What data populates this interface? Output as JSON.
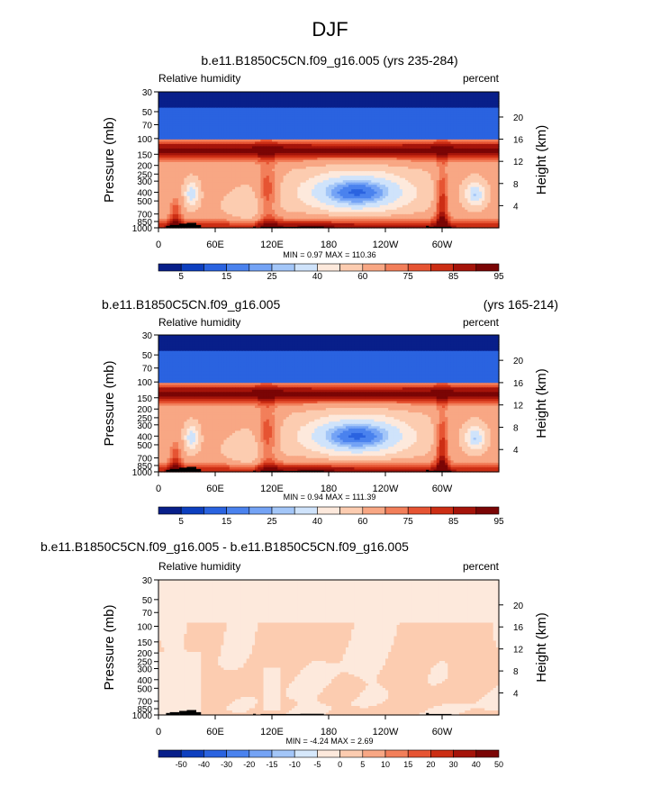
{
  "main_title": "DJF",
  "colors": {
    "rh_levels": [
      "#081f8a",
      "#0d3fbf",
      "#2a63e0",
      "#4a82ee",
      "#74a3f5",
      "#a3c6f8",
      "#cfe3fb",
      "#fde9dc",
      "#fcccb0",
      "#f8a784",
      "#f27f5a",
      "#e65433",
      "#cc2e14",
      "#a5140a",
      "#7a0505"
    ],
    "diff_levels": [
      "#081f8a",
      "#0d3fbf",
      "#2a63e0",
      "#4a82ee",
      "#74a3f5",
      "#a3c6f8",
      "#d6e8fb",
      "#fde9dc",
      "#fcccb0",
      "#f8a784",
      "#f27f5a",
      "#e65433",
      "#cc2e14",
      "#a5140a",
      "#7a0505"
    ],
    "terrain": "#000000"
  },
  "chart_data": [
    {
      "type": "heatmap",
      "title": "b.e11.B1850C5CN.f09_g16.005 (yrs 235-284)",
      "left_label": "Relative humidity",
      "right_label": "percent",
      "ylabel": "Pressure (mb)",
      "ylabel_right": "Height (km)",
      "x_ticks": [
        "0",
        "60E",
        "120E",
        "180",
        "120W",
        "60W"
      ],
      "x_tick_values": [
        0,
        60,
        120,
        180,
        240,
        300
      ],
      "xlim": [
        0,
        360
      ],
      "y_ticks": [
        "1000",
        "850",
        "700",
        "500",
        "400",
        "300",
        "250",
        "200",
        "150",
        "100",
        "70",
        "50",
        "30"
      ],
      "y_tick_values": [
        1000,
        850,
        700,
        500,
        400,
        300,
        250,
        200,
        150,
        100,
        70,
        50,
        30
      ],
      "ylim": [
        1000,
        30
      ],
      "height_ticks": [
        "4",
        "8",
        "12",
        "16",
        "20"
      ],
      "height_tick_values": [
        4,
        8,
        12,
        16,
        20
      ],
      "stats": "MIN =   0.97  MAX = 110.36",
      "colorbar_labels": [
        "5",
        "15",
        "25",
        "40",
        "60",
        "75",
        "85",
        "95"
      ],
      "field": "rh"
    },
    {
      "type": "heatmap",
      "title": "b.e11.B1850C5CN.f09_g16.005",
      "title_right": "(yrs 165-214)",
      "left_label": "Relative humidity",
      "right_label": "percent",
      "ylabel": "Pressure (mb)",
      "ylabel_right": "Height (km)",
      "x_ticks": [
        "0",
        "60E",
        "120E",
        "180",
        "120W",
        "60W"
      ],
      "x_tick_values": [
        0,
        60,
        120,
        180,
        240,
        300
      ],
      "xlim": [
        0,
        360
      ],
      "y_ticks": [
        "1000",
        "850",
        "700",
        "500",
        "400",
        "300",
        "250",
        "200",
        "150",
        "100",
        "70",
        "50",
        "30"
      ],
      "y_tick_values": [
        1000,
        850,
        700,
        500,
        400,
        300,
        250,
        200,
        150,
        100,
        70,
        50,
        30
      ],
      "ylim": [
        1000,
        30
      ],
      "height_ticks": [
        "4",
        "8",
        "12",
        "16",
        "20"
      ],
      "height_tick_values": [
        4,
        8,
        12,
        16,
        20
      ],
      "stats": "MIN =   0.94  MAX = 111.39",
      "colorbar_labels": [
        "5",
        "15",
        "25",
        "40",
        "60",
        "75",
        "85",
        "95"
      ],
      "field": "rh"
    },
    {
      "type": "heatmap",
      "title": "b.e11.B1850C5CN.f09_g16.005 - b.e11.B1850C5CN.f09_g16.005",
      "left_label": "Relative humidity",
      "right_label": "percent",
      "ylabel": "Pressure (mb)",
      "ylabel_right": "Height (km)",
      "x_ticks": [
        "0",
        "60E",
        "120E",
        "180",
        "120W",
        "60W"
      ],
      "x_tick_values": [
        0,
        60,
        120,
        180,
        240,
        300
      ],
      "xlim": [
        0,
        360
      ],
      "y_ticks": [
        "1000",
        "850",
        "700",
        "500",
        "400",
        "300",
        "250",
        "200",
        "150",
        "100",
        "70",
        "50",
        "30"
      ],
      "y_tick_values": [
        1000,
        850,
        700,
        500,
        400,
        300,
        250,
        200,
        150,
        100,
        70,
        50,
        30
      ],
      "ylim": [
        1000,
        30
      ],
      "height_ticks": [
        "4",
        "8",
        "12",
        "16",
        "20"
      ],
      "height_tick_values": [
        4,
        8,
        12,
        16,
        20
      ],
      "stats": "MIN =  -4.24  MAX =   2.69",
      "colorbar_labels": [
        "-50",
        "-40",
        "-30",
        "-20",
        "-15",
        "-10",
        "-5",
        "0",
        "5",
        "10",
        "15",
        "20",
        "30",
        "40",
        "50"
      ],
      "field": "diff"
    }
  ]
}
